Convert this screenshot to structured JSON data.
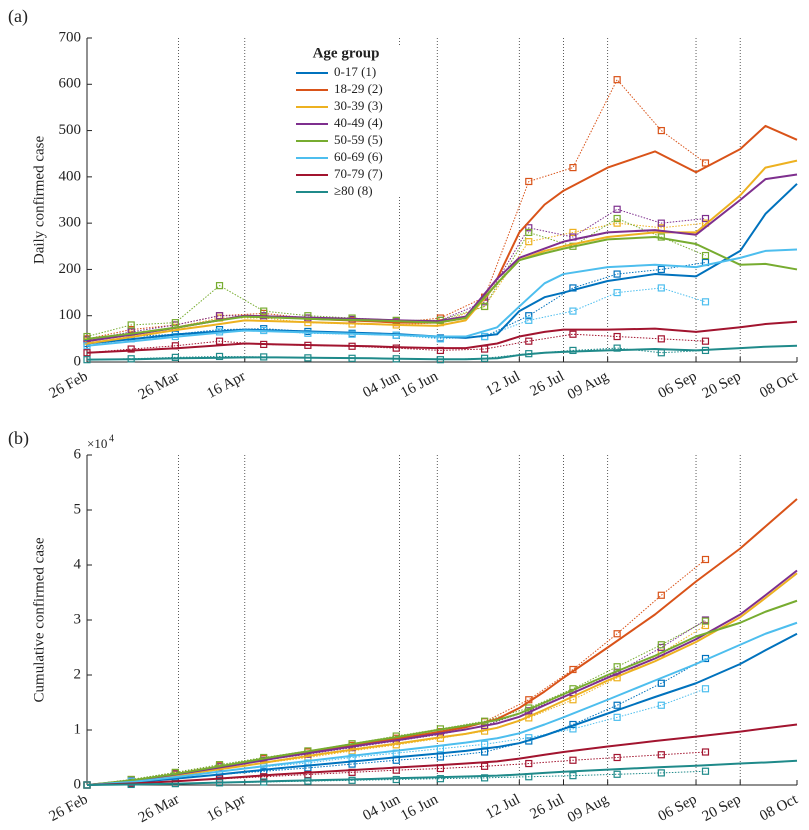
{
  "chart_data": [
    {
      "type": "line",
      "panel_label": "(a)",
      "ylabel": "Daily confirmed case",
      "legend_title": "Age group",
      "legend": "top-center",
      "xlim": [
        0,
        225
      ],
      "ylim": [
        0,
        700
      ],
      "xgrid": "dotted",
      "xticks": [
        {
          "value": 0,
          "label": "26 Feb"
        },
        {
          "value": 29,
          "label": "26 Mar"
        },
        {
          "value": 50,
          "label": "16 Apr"
        },
        {
          "value": 99,
          "label": "04 Jun"
        },
        {
          "value": 111,
          "label": "16 Jun"
        },
        {
          "value": 137,
          "label": "12 Jul"
        },
        {
          "value": 151,
          "label": "26 Jul"
        },
        {
          "value": 165,
          "label": "09 Aug"
        },
        {
          "value": 193,
          "label": "06 Sep"
        },
        {
          "value": 207,
          "label": "20 Sep"
        },
        {
          "value": 225,
          "label": "08 Oct"
        }
      ],
      "yticks": [
        0,
        100,
        200,
        300,
        400,
        500,
        600,
        700
      ],
      "x": [
        0,
        15,
        29,
        40,
        50,
        60,
        75,
        90,
        99,
        111,
        120,
        130,
        137,
        145,
        151,
        165,
        180,
        193,
        207,
        215,
        225
      ],
      "obs_x": [
        0,
        14,
        28,
        42,
        56,
        70,
        84,
        98,
        112,
        126,
        140,
        154,
        168,
        182,
        196
      ],
      "series": [
        {
          "name": "0-17 (1)",
          "color": "#0072bd",
          "values": [
            40,
            50,
            60,
            65,
            70,
            68,
            65,
            62,
            60,
            55,
            52,
            60,
            110,
            140,
            150,
            175,
            190,
            185,
            240,
            320,
            385
          ],
          "observed": [
            40,
            55,
            60,
            70,
            72,
            66,
            62,
            58,
            52,
            55,
            100,
            160,
            190,
            200,
            215
          ]
        },
        {
          "name": "18-29 (2)",
          "color": "#d95319",
          "values": [
            45,
            60,
            75,
            88,
            100,
            98,
            92,
            88,
            85,
            85,
            95,
            180,
            280,
            340,
            370,
            420,
            455,
            410,
            460,
            510,
            480
          ],
          "observed": [
            50,
            70,
            80,
            100,
            105,
            95,
            90,
            85,
            95,
            140,
            390,
            420,
            610,
            500,
            430
          ]
        },
        {
          "name": "30-39 (3)",
          "color": "#edb120",
          "values": [
            40,
            55,
            70,
            80,
            90,
            88,
            85,
            82,
            80,
            78,
            90,
            170,
            220,
            240,
            250,
            270,
            280,
            280,
            360,
            420,
            435
          ],
          "observed": [
            45,
            60,
            75,
            95,
            95,
            85,
            82,
            80,
            85,
            120,
            260,
            280,
            300,
            290,
            300
          ]
        },
        {
          "name": "40-49 (4)",
          "color": "#7e2f8e",
          "values": [
            45,
            60,
            75,
            88,
            100,
            98,
            95,
            92,
            90,
            88,
            98,
            180,
            225,
            245,
            260,
            280,
            285,
            275,
            350,
            395,
            405
          ],
          "observed": [
            48,
            65,
            80,
            100,
            100,
            95,
            92,
            88,
            90,
            130,
            290,
            270,
            330,
            300,
            310
          ]
        },
        {
          "name": "50-59 (5)",
          "color": "#77ac30",
          "values": [
            50,
            62,
            75,
            88,
            98,
            96,
            92,
            90,
            88,
            85,
            95,
            170,
            220,
            235,
            245,
            265,
            270,
            255,
            210,
            212,
            200
          ],
          "observed": [
            55,
            80,
            85,
            165,
            110,
            100,
            95,
            90,
            90,
            120,
            280,
            250,
            310,
            270,
            230
          ]
        },
        {
          "name": "60-69 (6)",
          "color": "#4dbeee",
          "values": [
            35,
            45,
            55,
            62,
            68,
            66,
            63,
            60,
            58,
            55,
            55,
            75,
            120,
            170,
            190,
            205,
            210,
            205,
            225,
            240,
            243
          ],
          "observed": [
            35,
            50,
            55,
            65,
            68,
            62,
            60,
            58,
            50,
            55,
            90,
            110,
            150,
            160,
            130
          ]
        },
        {
          "name": "70-79 (7)",
          "color": "#a2142f",
          "values": [
            20,
            25,
            30,
            35,
            40,
            38,
            36,
            34,
            32,
            30,
            30,
            40,
            55,
            65,
            70,
            70,
            72,
            65,
            75,
            82,
            87
          ],
          "observed": [
            20,
            28,
            35,
            45,
            38,
            36,
            34,
            30,
            25,
            28,
            45,
            60,
            55,
            50,
            45
          ]
        },
        {
          "name": "≥80 (8)",
          "color": "#1f8a8a",
          "values": [
            5,
            6,
            8,
            9,
            10,
            10,
            9,
            8,
            7,
            6,
            6,
            8,
            15,
            20,
            22,
            25,
            28,
            25,
            30,
            33,
            35
          ],
          "observed": [
            5,
            7,
            10,
            12,
            11,
            9,
            8,
            7,
            5,
            8,
            18,
            25,
            30,
            20,
            25
          ]
        }
      ]
    },
    {
      "type": "line",
      "panel_label": "(b)",
      "ylabel": "Cumulative confirmed case",
      "y_scale_base": "×10",
      "y_scale_exp": "4",
      "xlim": [
        0,
        225
      ],
      "ylim": [
        0,
        60000
      ],
      "xgrid": "dotted",
      "xticks": [
        {
          "value": 0,
          "label": "26 Feb"
        },
        {
          "value": 29,
          "label": "26 Mar"
        },
        {
          "value": 50,
          "label": "16 Apr"
        },
        {
          "value": 99,
          "label": "04 Jun"
        },
        {
          "value": 111,
          "label": "16 Jun"
        },
        {
          "value": 137,
          "label": "12 Jul"
        },
        {
          "value": 151,
          "label": "26 Jul"
        },
        {
          "value": 165,
          "label": "09 Aug"
        },
        {
          "value": 193,
          "label": "06 Sep"
        },
        {
          "value": 207,
          "label": "20 Sep"
        },
        {
          "value": 225,
          "label": "08 Oct"
        }
      ],
      "yticks": [
        {
          "value": 0,
          "label": "0"
        },
        {
          "value": 10000,
          "label": "1"
        },
        {
          "value": 20000,
          "label": "2"
        },
        {
          "value": 30000,
          "label": "3"
        },
        {
          "value": 40000,
          "label": "4"
        },
        {
          "value": 50000,
          "label": "5"
        },
        {
          "value": 60000,
          "label": "6"
        }
      ],
      "x": [
        0,
        15,
        29,
        40,
        50,
        60,
        75,
        90,
        99,
        111,
        120,
        130,
        137,
        145,
        151,
        165,
        180,
        193,
        207,
        215,
        225
      ],
      "obs_x": [
        0,
        14,
        28,
        42,
        56,
        70,
        84,
        98,
        112,
        126,
        140,
        154,
        168,
        182,
        196
      ],
      "series": [
        {
          "color": "#0072bd",
          "values": [
            0,
            500,
            1200,
            1800,
            2400,
            3000,
            3800,
            4600,
            5100,
            5700,
            6200,
            6900,
            7600,
            9000,
            10200,
            13000,
            16000,
            18500,
            22000,
            24500,
            27500
          ],
          "observed": [
            0,
            500,
            1200,
            1900,
            2500,
            3100,
            3800,
            4500,
            5100,
            6000,
            8000,
            11000,
            14500,
            18500,
            23000
          ]
        },
        {
          "color": "#d95319",
          "values": [
            0,
            800,
            2000,
            3000,
            4000,
            5000,
            6400,
            7700,
            8500,
            9600,
            10500,
            12000,
            14000,
            17000,
            19500,
            25000,
            31000,
            37000,
            43000,
            47000,
            52000
          ],
          "observed": [
            0,
            1000,
            2200,
            3500,
            4800,
            6000,
            7200,
            8500,
            9700,
            11500,
            15500,
            21000,
            27500,
            34500,
            41000
          ]
        },
        {
          "color": "#edb120",
          "values": [
            0,
            700,
            1800,
            2700,
            3500,
            4400,
            5700,
            6900,
            7600,
            8600,
            9300,
            10400,
            11700,
            13700,
            15300,
            19000,
            22500,
            26000,
            30500,
            34000,
            38500
          ],
          "observed": [
            0,
            800,
            1800,
            3000,
            4000,
            5000,
            6200,
            7300,
            8500,
            9800,
            12200,
            15500,
            19500,
            24000,
            29000
          ]
        },
        {
          "color": "#7e2f8e",
          "values": [
            0,
            800,
            2000,
            3000,
            3900,
            4900,
            6200,
            7500,
            8200,
            9300,
            10100,
            11200,
            12400,
            14500,
            16000,
            19500,
            23000,
            26500,
            31000,
            34500,
            39000
          ],
          "observed": [
            0,
            900,
            2000,
            3300,
            4500,
            5600,
            6800,
            8000,
            9200,
            10800,
            13500,
            16800,
            20500,
            25000,
            30000
          ]
        },
        {
          "color": "#77ac30",
          "values": [
            0,
            900,
            2100,
            3200,
            4200,
            5200,
            6600,
            8000,
            8800,
            10000,
            10800,
            11800,
            13000,
            15000,
            16500,
            20000,
            23500,
            27000,
            29500,
            31500,
            33500
          ],
          "observed": [
            0,
            1000,
            2300,
            3700,
            5000,
            6200,
            7500,
            8900,
            10200,
            11600,
            14000,
            17500,
            21500,
            25500,
            29800
          ]
        },
        {
          "color": "#4dbeee",
          "values": [
            0,
            600,
            1500,
            2300,
            3000,
            3700,
            4700,
            5700,
            6300,
            7100,
            7700,
            8500,
            9400,
            11000,
            12300,
            15500,
            19000,
            22000,
            25500,
            27500,
            29500
          ],
          "observed": [
            0,
            700,
            1500,
            2500,
            3300,
            4000,
            5000,
            5800,
            6600,
            7400,
            8600,
            10200,
            12300,
            14500,
            17500
          ]
        },
        {
          "color": "#a2142f",
          "values": [
            0,
            300,
            700,
            1100,
            1500,
            1900,
            2400,
            2900,
            3200,
            3600,
            3900,
            4300,
            4800,
            5500,
            6000,
            7000,
            8000,
            8800,
            9700,
            10300,
            11000
          ],
          "observed": [
            0,
            300,
            700,
            1100,
            1500,
            1900,
            2300,
            2700,
            3000,
            3400,
            3900,
            4500,
            5000,
            5500,
            6000
          ]
        },
        {
          "color": "#1f8a8a",
          "values": [
            0,
            100,
            250,
            400,
            550,
            700,
            900,
            1100,
            1250,
            1400,
            1550,
            1700,
            1900,
            2200,
            2400,
            2800,
            3200,
            3500,
            3900,
            4100,
            4400
          ],
          "observed": [
            0,
            100,
            250,
            400,
            550,
            700,
            850,
            1000,
            1150,
            1300,
            1500,
            1700,
            1950,
            2200,
            2500
          ]
        }
      ]
    }
  ]
}
